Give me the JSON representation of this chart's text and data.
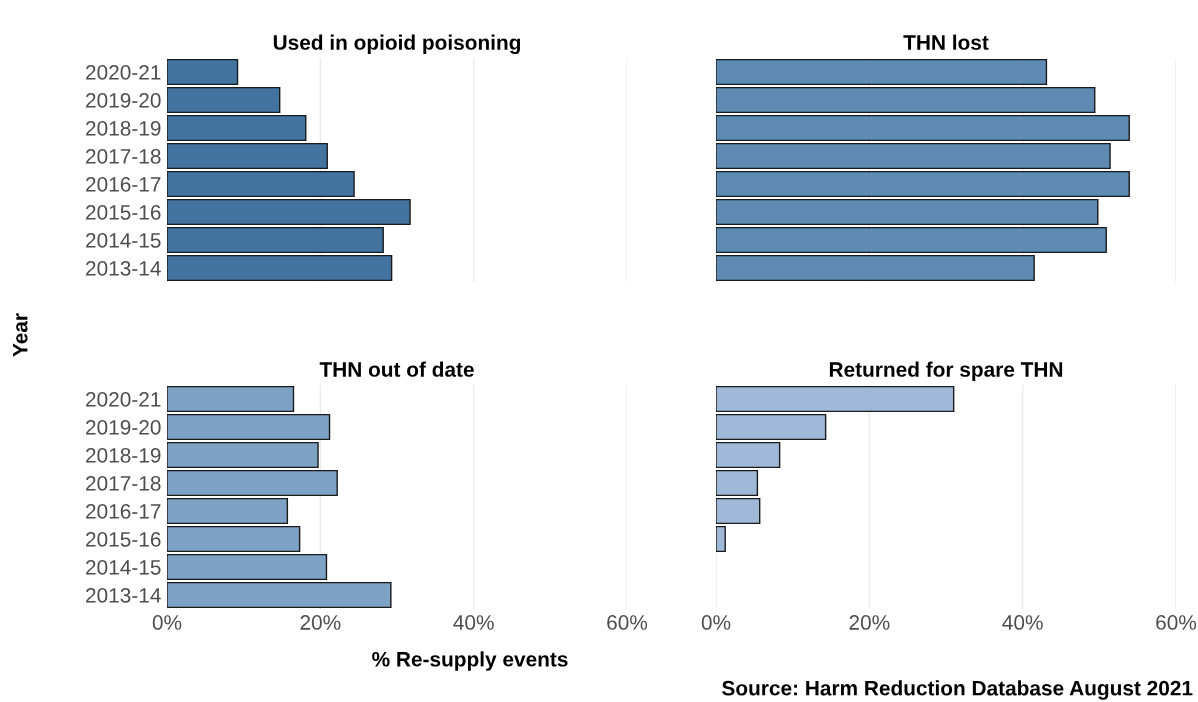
{
  "chart_data": [
    {
      "type": "bar",
      "orientation": "horizontal",
      "title": "Used in opioid poisoning",
      "ylabel": "Year",
      "categories": [
        "2020-21",
        "2019-20",
        "2018-19",
        "2017-18",
        "2016-17",
        "2015-16",
        "2014-15",
        "2013-14"
      ],
      "values": [
        9.2,
        14.7,
        18.1,
        20.9,
        24.4,
        31.7,
        28.2,
        29.3
      ],
      "color": "#43739f",
      "xlim": [
        0,
        60
      ],
      "xticks": [
        {
          "value": 0,
          "label": null
        },
        {
          "value": 20,
          "label": null
        },
        {
          "value": 40,
          "label": null
        },
        {
          "value": 60,
          "label": null
        }
      ],
      "grid": "x",
      "tick_labels": "y"
    },
    {
      "type": "bar",
      "orientation": "horizontal",
      "title": "THN lost",
      "categories": [
        "2020-21",
        "2019-20",
        "2018-19",
        "2017-18",
        "2016-17",
        "2015-16",
        "2014-15",
        "2013-14"
      ],
      "values": [
        43.1,
        49.4,
        53.9,
        51.4,
        53.9,
        49.8,
        50.9,
        41.5
      ],
      "color": "#5f8ab4",
      "xlim": [
        0,
        60
      ],
      "xticks": [
        {
          "value": 0,
          "label": null
        },
        {
          "value": 20,
          "label": null
        },
        {
          "value": 40,
          "label": null
        },
        {
          "value": 60,
          "label": null
        }
      ],
      "grid": "x",
      "tick_labels": false
    },
    {
      "type": "bar",
      "orientation": "horizontal",
      "title": "THN out of date",
      "xlabel": "% Re-supply events",
      "categories": [
        "2020-21",
        "2019-20",
        "2018-19",
        "2017-18",
        "2016-17",
        "2015-16",
        "2014-15",
        "2013-14"
      ],
      "values": [
        16.5,
        21.2,
        19.7,
        22.2,
        15.7,
        17.3,
        20.8,
        29.2
      ],
      "color": "#7ea1c6",
      "xlim": [
        0,
        60
      ],
      "xticks": [
        {
          "value": 0,
          "label": "0%"
        },
        {
          "value": 20,
          "label": "20%"
        },
        {
          "value": 40,
          "label": "40%"
        },
        {
          "value": 60,
          "label": "60%"
        }
      ],
      "grid": "x"
    },
    {
      "type": "bar",
      "orientation": "horizontal",
      "title": "Returned for spare THN",
      "annotations": [
        "Source: Harm Reduction Database August 2021"
      ],
      "categories": [
        "2020-21",
        "2019-20",
        "2018-19",
        "2017-18",
        "2016-17",
        "2015-16",
        "2014-15",
        "2013-14"
      ],
      "values": [
        31.0,
        14.3,
        8.3,
        5.4,
        5.7,
        1.2,
        null,
        null
      ],
      "color": "#a0b8d8",
      "xlim": [
        0,
        60
      ],
      "xticks": [
        {
          "value": 0,
          "label": "0%"
        },
        {
          "value": 20,
          "label": "20%"
        },
        {
          "value": 40,
          "label": "40%"
        },
        {
          "value": 60,
          "label": "60%"
        }
      ],
      "grid": "x",
      "tick_labels": "x"
    }
  ]
}
